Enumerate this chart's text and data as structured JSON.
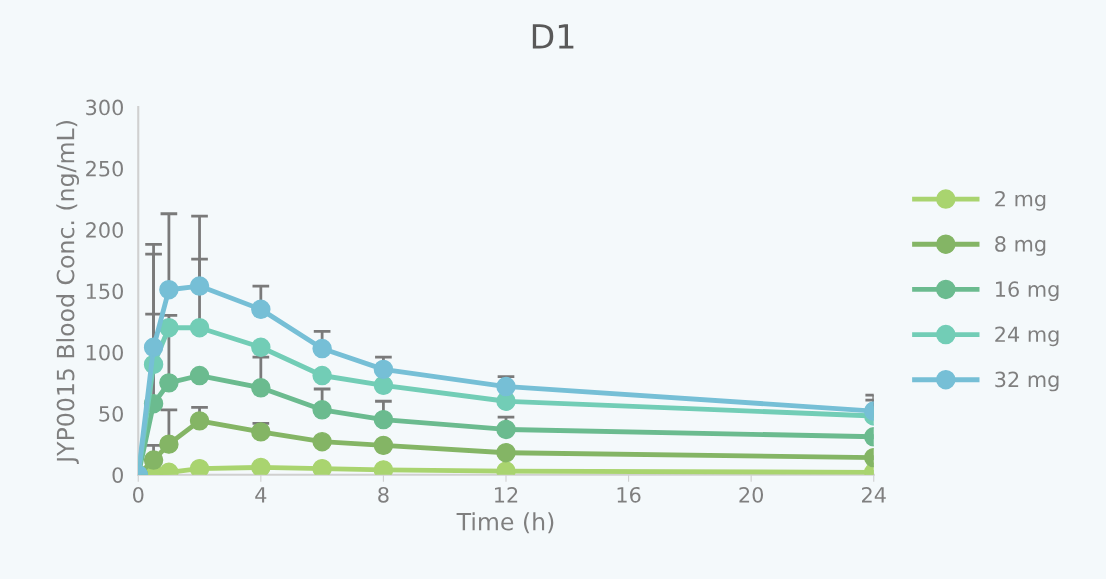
{
  "chart_data": {
    "type": "line",
    "title": "D1",
    "xlabel": "Time (h)",
    "ylabel": "JYP0015 Blood Conc. (ng/mL)",
    "x": [
      0,
      0.5,
      1,
      2,
      4,
      6,
      8,
      12,
      24
    ],
    "xlim": [
      0,
      24
    ],
    "xticks": [
      0,
      4,
      8,
      12,
      16,
      20,
      24
    ],
    "ylim": [
      0,
      300
    ],
    "yticks": [
      0,
      50,
      100,
      150,
      200,
      250,
      300
    ],
    "grid": false,
    "legend": "right",
    "marker": "circle",
    "line_style": "solid",
    "series": [
      {
        "name": "2 mg",
        "color": "#a9d46f",
        "values": [
          0,
          1,
          2,
          5,
          6,
          5,
          4,
          3,
          2
        ]
      },
      {
        "name": "8 mg",
        "color": "#84b565",
        "values": [
          0,
          12,
          25,
          44,
          35,
          27,
          24,
          18,
          14
        ],
        "errors": [
          null,
          [
            12,
            24
          ],
          [
            25,
            53
          ],
          [
            44,
            55
          ],
          [
            35,
            42
          ],
          null,
          null,
          null,
          null
        ]
      },
      {
        "name": "16 mg",
        "color": "#6bbb8f",
        "values": [
          0,
          58,
          75,
          81,
          71,
          53,
          45,
          37,
          31
        ],
        "errors": [
          null,
          [
            58,
            131
          ],
          [
            75,
            130
          ],
          null,
          [
            71,
            96
          ],
          [
            53,
            70
          ],
          [
            45,
            60
          ],
          [
            37,
            47
          ],
          null
        ]
      },
      {
        "name": "24 mg",
        "color": "#72cdb6",
        "values": [
          0,
          90,
          120,
          120,
          104,
          81,
          73,
          60,
          48
        ],
        "errors": [
          null,
          [
            90,
            180
          ],
          null,
          [
            120,
            176
          ],
          null,
          null,
          null,
          null,
          [
            48,
            61
          ]
        ]
      },
      {
        "name": "32 mg",
        "color": "#76bfd6",
        "values": [
          0,
          104,
          151,
          154,
          135,
          103,
          86,
          72,
          52
        ],
        "errors": [
          null,
          [
            104,
            188
          ],
          [
            151,
            213
          ],
          [
            154,
            211
          ],
          [
            135,
            154
          ],
          [
            103,
            117
          ],
          [
            86,
            96
          ],
          [
            72,
            80
          ],
          [
            52,
            65
          ]
        ]
      }
    ]
  }
}
